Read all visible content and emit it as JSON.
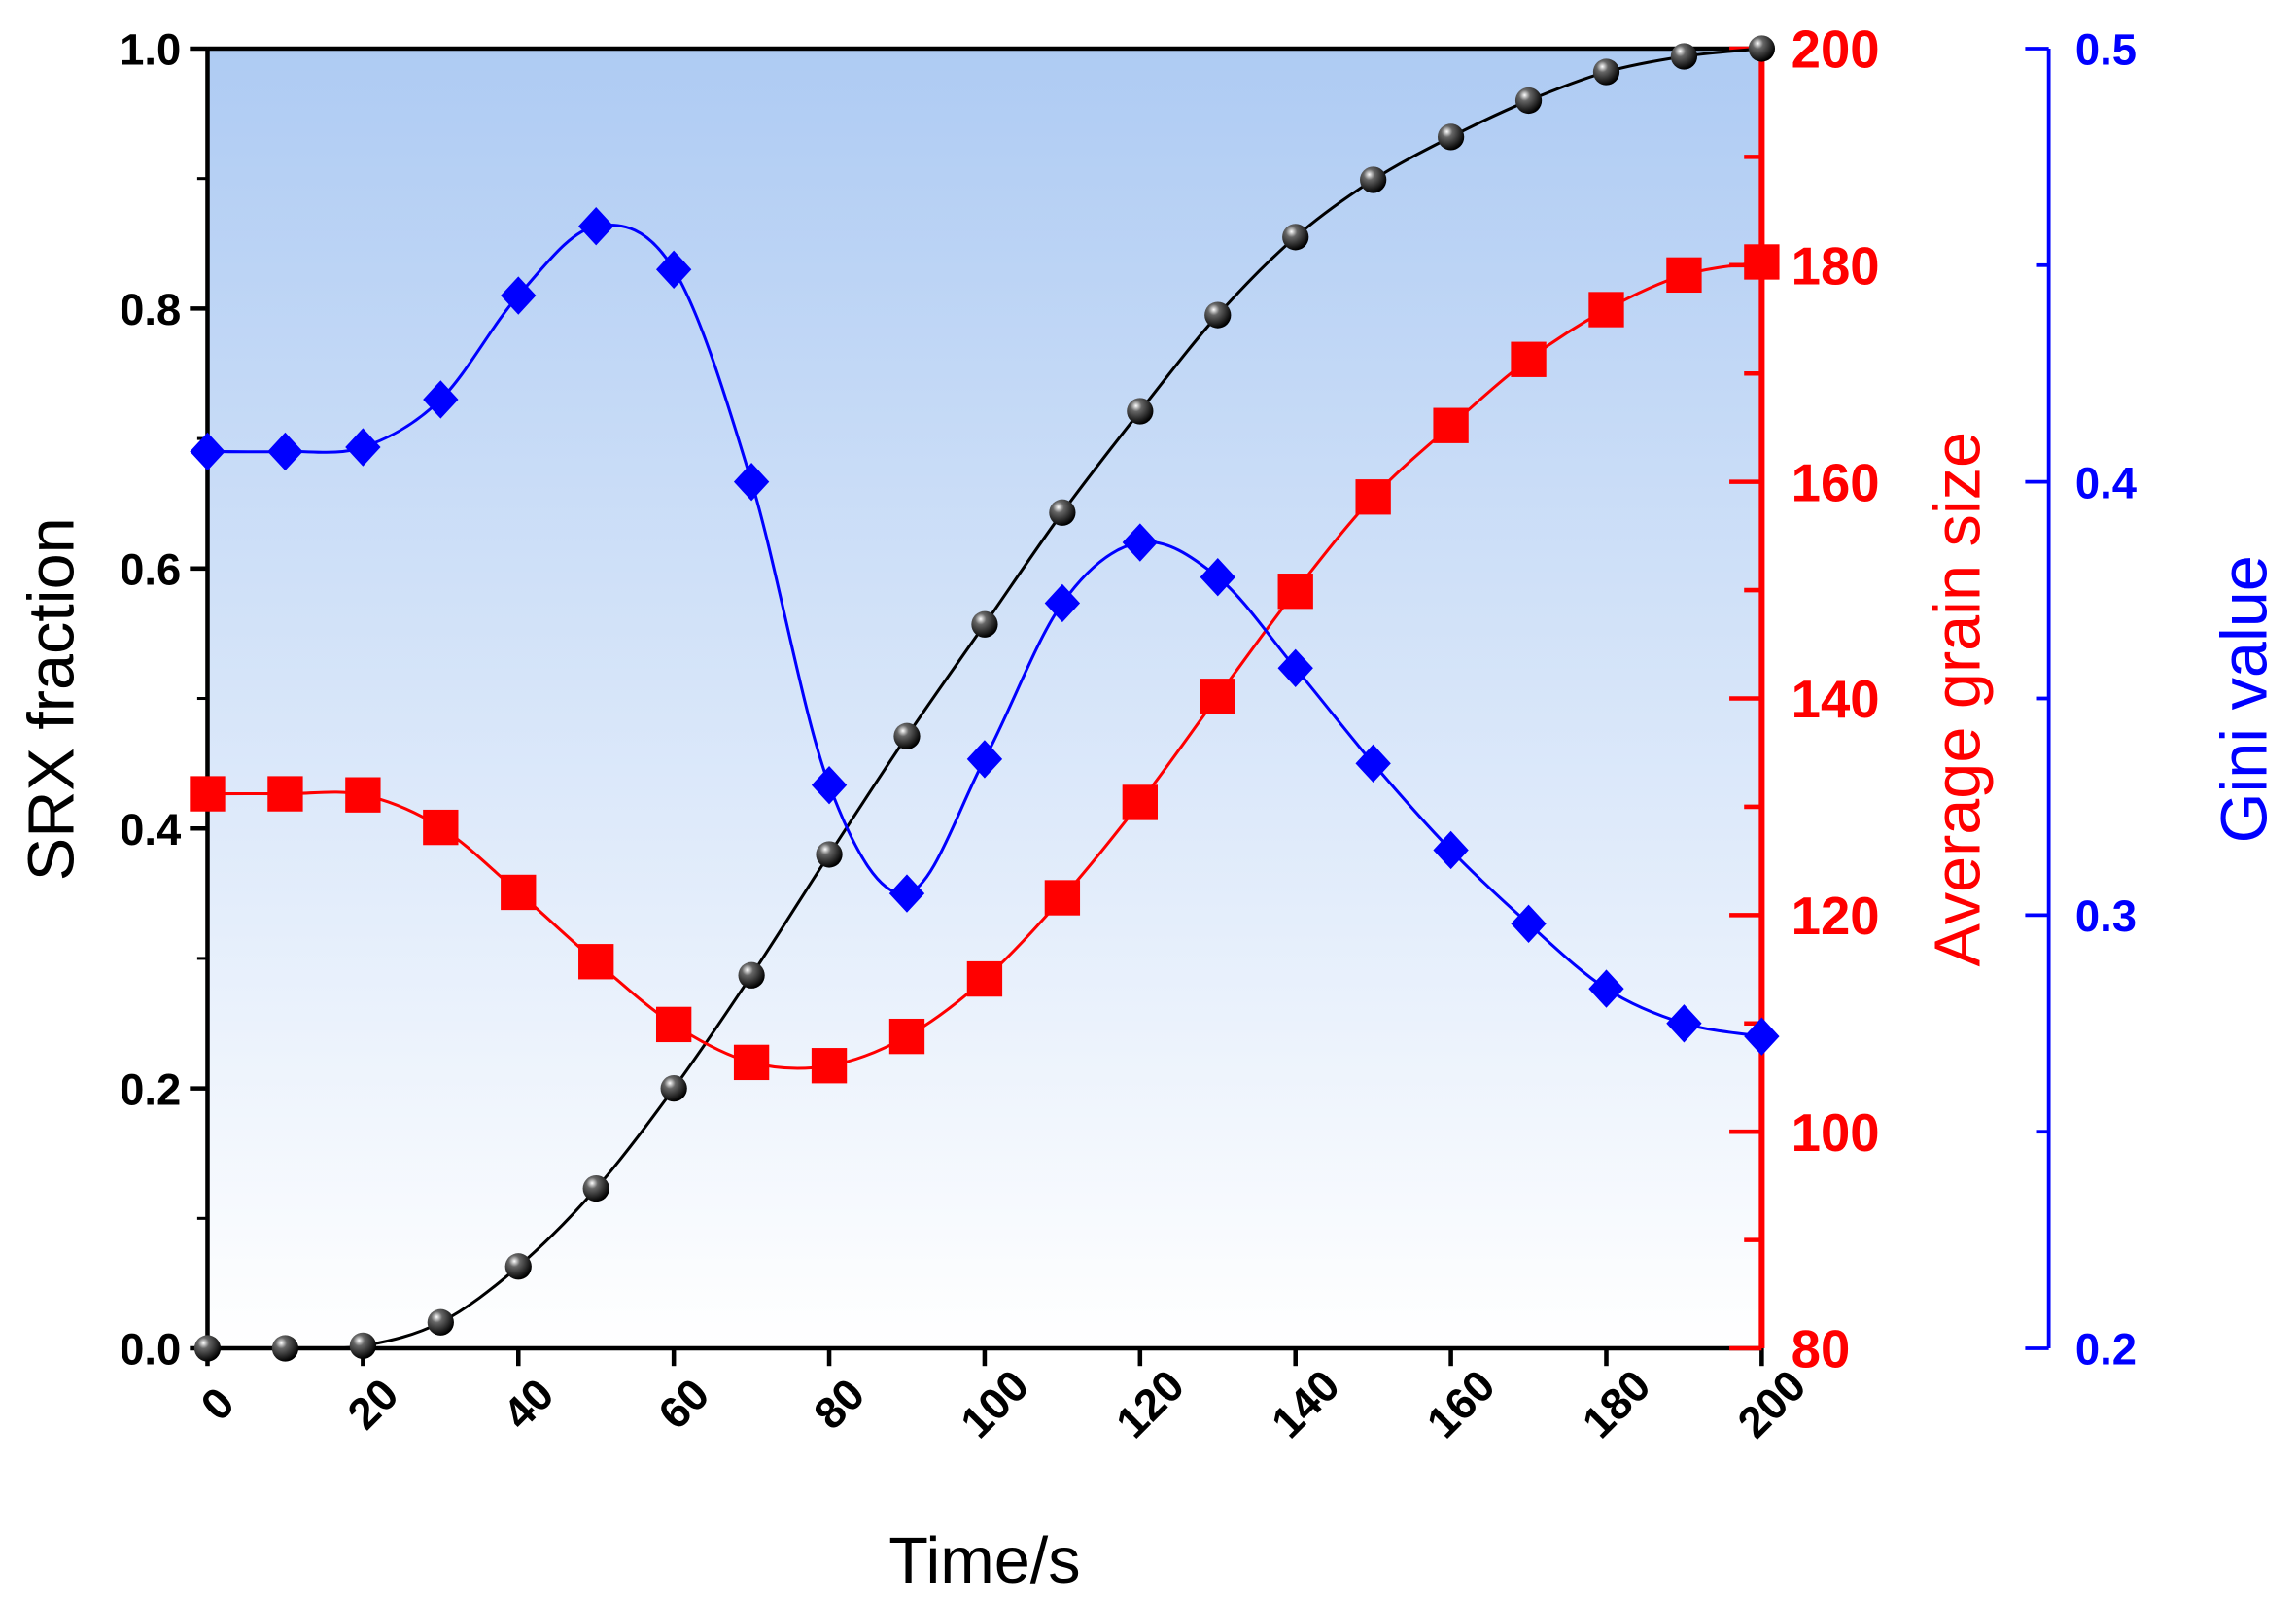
{
  "chart_data": {
    "type": "line",
    "xlabel": "Time/s",
    "xlim": [
      0,
      200
    ],
    "xticks": [
      "0",
      "20",
      "40",
      "60",
      "80",
      "100",
      "120",
      "140",
      "160",
      "180",
      "200"
    ],
    "x": [
      0,
      10,
      20,
      30,
      40,
      50,
      60,
      70,
      80,
      90,
      100,
      110,
      120,
      130,
      140,
      150,
      160,
      170,
      180,
      190,
      200
    ],
    "background": {
      "top": "#aecbf3",
      "bottom": "#ffffff"
    },
    "grid": false,
    "axes": [
      {
        "id": "left",
        "label": "SRX fraction",
        "ylim": [
          0,
          1.0
        ],
        "ticks": [
          "0.0",
          "0.2",
          "0.4",
          "0.6",
          "0.8",
          "1.0"
        ],
        "color": "#000000"
      },
      {
        "id": "right",
        "label": "Average grain size",
        "ylim": [
          80,
          200
        ],
        "ticks": [
          "80",
          "100",
          "120",
          "140",
          "160",
          "180",
          "200"
        ],
        "color": "#ff0000"
      },
      {
        "id": "right2",
        "label": "Gini value",
        "ylim": [
          0.2,
          0.5
        ],
        "ticks": [
          "0.2",
          "0.3",
          "0.4",
          "0.5"
        ],
        "color": "#0000ff"
      }
    ],
    "series": [
      {
        "axis": "left",
        "marker": "sphere",
        "color": "#000000",
        "values": [
          0,
          0,
          0.002,
          0.02,
          0.063,
          0.123,
          0.2,
          0.287,
          0.38,
          0.471,
          0.557,
          0.643,
          0.721,
          0.795,
          0.855,
          0.899,
          0.932,
          0.96,
          0.982,
          0.994,
          1.0
        ]
      },
      {
        "axis": "right",
        "marker": "square",
        "color": "#ff0000",
        "values": [
          131.2,
          131.2,
          131.1,
          128.1,
          122.1,
          115.7,
          109.9,
          106.4,
          106.1,
          108.8,
          114.1,
          121.6,
          130.4,
          140.2,
          149.9,
          158.6,
          165.2,
          171.3,
          175.9,
          179.1,
          180.3
        ]
      },
      {
        "axis": "right2",
        "marker": "diamond",
        "color": "#0000ff",
        "values": [
          0.407,
          0.407,
          0.408,
          0.419,
          0.443,
          0.459,
          0.449,
          0.4,
          0.33,
          0.305,
          0.336,
          0.372,
          0.386,
          0.378,
          0.357,
          0.335,
          0.315,
          0.298,
          0.283,
          0.275,
          0.272
        ]
      }
    ]
  }
}
